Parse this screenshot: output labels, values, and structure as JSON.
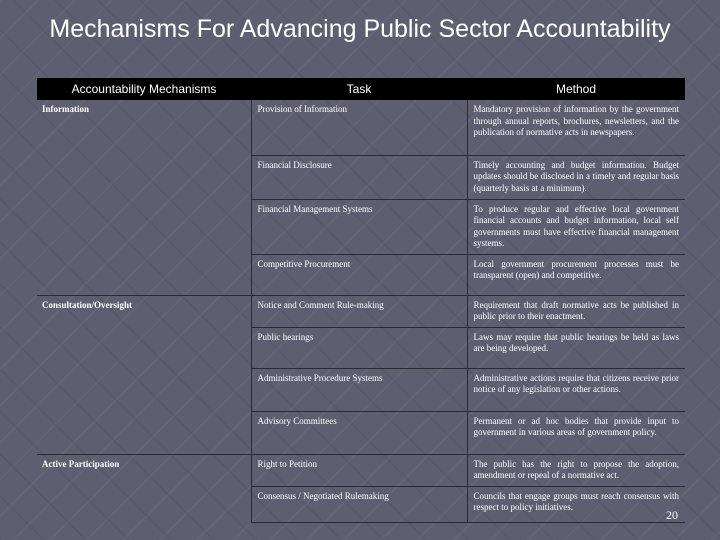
{
  "title": "Mechanisms For Advancing Public Sector Accountability",
  "table": {
    "headers": [
      "Accountability Mechanisms",
      "Task",
      "Method"
    ],
    "groups": [
      {
        "mechanism": "Information",
        "rows": [
          {
            "task": "Provision of Information",
            "method": "Mandatory provision of information by the government through annual reports, brochures, newsletters, and the publication of normative acts in newspapers."
          },
          {
            "task": "Financial Disclosure",
            "method": "Timely accounting and budget information. Budget updates should be disclosed in a timely and regular basis (quarterly basis at a minimum)."
          },
          {
            "task": "Financial Management Systems",
            "method": "To produce regular and effective local government financial accounts and budget information, local self governments must have effective financial management systems."
          },
          {
            "task": "Competitive Procurement",
            "method": "Local government procurement processes must be transparent (open) and competitive."
          }
        ]
      },
      {
        "mechanism": "Consultation/Oversight",
        "rows": [
          {
            "task": "Notice and Comment Rule-making",
            "method": "Requirement that draft normative acts be published in public prior to their enactment."
          },
          {
            "task": "Public hearings",
            "method": "Laws may require that public hearings be held as laws are being developed."
          },
          {
            "task": "Administrative Procedure Systems",
            "method": "Administrative actions require that citizens receive prior notice of any legislation or other actions."
          },
          {
            "task": "Advisory Committees",
            "method": "Permanent or ad hoc bodies that provide input to government in various areas of government policy."
          }
        ]
      },
      {
        "mechanism": "Active Participation",
        "rows": [
          {
            "task": "Right to Petition",
            "method": "The public has the right to propose the adoption, amendment or repeal of a normative act."
          },
          {
            "task": "Consensus / Negotiated Rulemaking",
            "method": "Councils that engage groups must reach consensus with respect to policy initiatives."
          }
        ]
      }
    ]
  },
  "page_number": "20"
}
